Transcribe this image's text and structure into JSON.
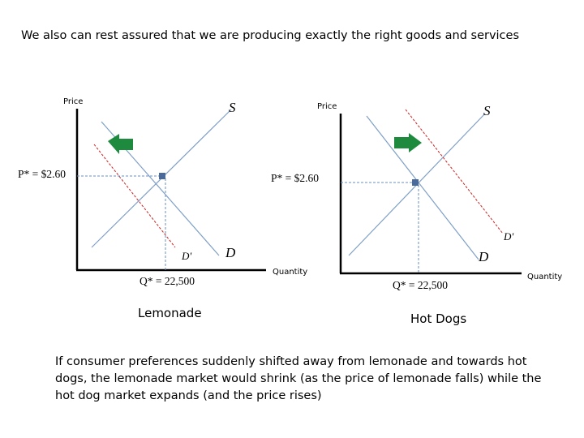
{
  "heading": "We also can rest assured that we are producing exactly the right goods and services",
  "left_market": {
    "name": "Lemonade",
    "y_axis_label": "Price",
    "x_axis_label": "Quantity",
    "price_label": "P* = $2.60",
    "quantity_label": "Q* = 22,500",
    "supply_label": "S",
    "demand_label": "D",
    "new_demand_label": "D'",
    "shift_direction": "left"
  },
  "right_market": {
    "name": "Hot Dogs",
    "y_axis_label": "Price",
    "x_axis_label": "Quantity",
    "price_label": "P* = $2.60",
    "quantity_label": "Q* = 22,500",
    "supply_label": "S",
    "demand_label": "D",
    "new_demand_label": "D'",
    "shift_direction": "right"
  },
  "caption": "If consumer preferences suddenly shifted away from lemonade and towards hot dogs, the lemonade market would shrink (as the price of lemonade falls) while the hot dog market expands (and the price rises)",
  "colors": {
    "curve": "#7f9fc7",
    "shifted_demand": "#cc2222",
    "guide": "#6b8fbf",
    "equilibrium": "#4a6a9a",
    "arrow": "#1e8a3e",
    "axis": "#000000"
  }
}
